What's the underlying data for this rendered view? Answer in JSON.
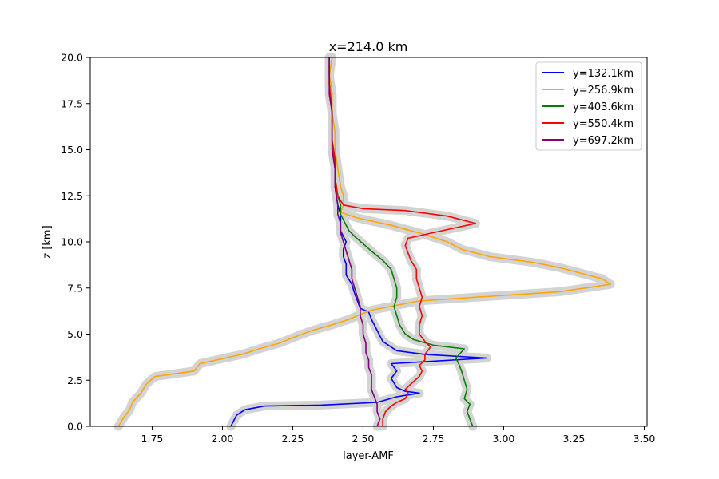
{
  "chart_data": {
    "type": "line",
    "title": "x=214.0 km",
    "xlabel": "layer-AMF",
    "ylabel": "z [km]",
    "xlim": [
      1.53,
      3.51
    ],
    "ylim": [
      0,
      20
    ],
    "xticks": [
      1.75,
      2.0,
      2.25,
      2.5,
      2.75,
      3.0,
      3.25,
      3.5
    ],
    "xtick_labels": [
      "1.75",
      "2.00",
      "2.25",
      "2.50",
      "2.75",
      "3.00",
      "3.25",
      "3.50"
    ],
    "yticks": [
      0,
      2.5,
      5,
      7.5,
      10,
      12.5,
      15,
      17.5,
      20
    ],
    "ytick_labels": [
      "0.0",
      "2.5",
      "5.0",
      "7.5",
      "10.0",
      "12.5",
      "15.0",
      "17.5",
      "20.0"
    ],
    "grid": false,
    "legend_position": "top-right",
    "uncertainty_band_color": "#d3d3d3",
    "series": [
      {
        "name": "y=132.1km",
        "color": "#0000ff",
        "points": [
          [
            2.03,
            0
          ],
          [
            2.04,
            0.3
          ],
          [
            2.05,
            0.6
          ],
          [
            2.08,
            0.9
          ],
          [
            2.15,
            1.1
          ],
          [
            2.35,
            1.15
          ],
          [
            2.55,
            1.3
          ],
          [
            2.62,
            1.6
          ],
          [
            2.7,
            1.8
          ],
          [
            2.65,
            1.9
          ],
          [
            2.62,
            2.1
          ],
          [
            2.6,
            2.6
          ],
          [
            2.62,
            3.0
          ],
          [
            2.6,
            3.4
          ],
          [
            2.94,
            3.7
          ],
          [
            2.72,
            3.9
          ],
          [
            2.62,
            4.1
          ],
          [
            2.57,
            4.6
          ],
          [
            2.55,
            5.2
          ],
          [
            2.53,
            5.8
          ],
          [
            2.52,
            6.2
          ],
          [
            2.49,
            6.4
          ],
          [
            2.48,
            6.8
          ],
          [
            2.47,
            7.2
          ],
          [
            2.46,
            7.7
          ],
          [
            2.44,
            8.2
          ],
          [
            2.44,
            8.8
          ],
          [
            2.43,
            9.2
          ],
          [
            2.43,
            9.6
          ],
          [
            2.44,
            10.0
          ],
          [
            2.43,
            10.3
          ],
          [
            2.42,
            10.6
          ],
          [
            2.42,
            11.0
          ],
          [
            2.42,
            11.5
          ],
          [
            2.41,
            12.0
          ],
          [
            2.4,
            13.0
          ],
          [
            2.4,
            14.0
          ],
          [
            2.39,
            15.0
          ],
          [
            2.39,
            16.0
          ],
          [
            2.39,
            17.0
          ],
          [
            2.39,
            18.0
          ],
          [
            2.38,
            19.0
          ],
          [
            2.38,
            20.0
          ]
        ]
      },
      {
        "name": "y=256.9km",
        "color": "#ffa500",
        "points": [
          [
            1.63,
            0
          ],
          [
            1.65,
            0.5
          ],
          [
            1.67,
            0.9
          ],
          [
            1.68,
            1.3
          ],
          [
            1.71,
            1.8
          ],
          [
            1.73,
            2.3
          ],
          [
            1.76,
            2.7
          ],
          [
            1.83,
            2.85
          ],
          [
            1.9,
            3.0
          ],
          [
            1.92,
            3.4
          ],
          [
            1.98,
            3.6
          ],
          [
            2.07,
            3.9
          ],
          [
            2.13,
            4.2
          ],
          [
            2.2,
            4.5
          ],
          [
            2.25,
            4.8
          ],
          [
            2.32,
            5.2
          ],
          [
            2.39,
            5.5
          ],
          [
            2.45,
            5.8
          ],
          [
            2.48,
            6.0
          ],
          [
            2.53,
            6.3
          ],
          [
            2.7,
            6.8
          ],
          [
            3.0,
            7.1
          ],
          [
            3.2,
            7.3
          ],
          [
            3.38,
            7.7
          ],
          [
            3.35,
            8.0
          ],
          [
            3.3,
            8.2
          ],
          [
            3.2,
            8.6
          ],
          [
            3.1,
            8.9
          ],
          [
            2.95,
            9.2
          ],
          [
            2.85,
            9.6
          ],
          [
            2.8,
            10.0
          ],
          [
            2.72,
            10.4
          ],
          [
            2.6,
            10.9
          ],
          [
            2.48,
            11.3
          ],
          [
            2.42,
            11.6
          ],
          [
            2.43,
            12.0
          ],
          [
            2.43,
            12.5
          ],
          [
            2.42,
            13.0
          ],
          [
            2.41,
            14.0
          ],
          [
            2.4,
            15.0
          ],
          [
            2.4,
            16.0
          ],
          [
            2.39,
            17.0
          ],
          [
            2.39,
            18.0
          ],
          [
            2.38,
            19.0
          ],
          [
            2.39,
            20.0
          ]
        ]
      },
      {
        "name": "y=403.6km",
        "color": "#008000",
        "points": [
          [
            2.89,
            0
          ],
          [
            2.88,
            0.4
          ],
          [
            2.87,
            0.8
          ],
          [
            2.88,
            1.2
          ],
          [
            2.86,
            1.5
          ],
          [
            2.87,
            2.0
          ],
          [
            2.86,
            2.5
          ],
          [
            2.85,
            3.0
          ],
          [
            2.84,
            3.4
          ],
          [
            2.83,
            3.7
          ],
          [
            2.86,
            4.2
          ],
          [
            2.75,
            4.4
          ],
          [
            2.68,
            4.7
          ],
          [
            2.65,
            5.0
          ],
          [
            2.63,
            5.5
          ],
          [
            2.62,
            6.0
          ],
          [
            2.61,
            6.5
          ],
          [
            2.62,
            7.0
          ],
          [
            2.62,
            7.5
          ],
          [
            2.61,
            8.0
          ],
          [
            2.6,
            8.5
          ],
          [
            2.57,
            9.0
          ],
          [
            2.53,
            9.5
          ],
          [
            2.5,
            9.9
          ],
          [
            2.47,
            10.3
          ],
          [
            2.45,
            10.6
          ],
          [
            2.44,
            10.9
          ],
          [
            2.43,
            11.2
          ],
          [
            2.42,
            11.5
          ],
          [
            2.42,
            12.0
          ],
          [
            2.41,
            12.5
          ],
          [
            2.4,
            13.5
          ],
          [
            2.4,
            14.5
          ],
          [
            2.39,
            15.5
          ],
          [
            2.39,
            17.0
          ],
          [
            2.38,
            18.5
          ],
          [
            2.38,
            20.0
          ]
        ]
      },
      {
        "name": "y=550.4km",
        "color": "#ff0000",
        "points": [
          [
            2.57,
            0
          ],
          [
            2.57,
            0.4
          ],
          [
            2.58,
            0.8
          ],
          [
            2.6,
            1.1
          ],
          [
            2.62,
            1.3
          ],
          [
            2.65,
            1.5
          ],
          [
            2.66,
            1.8
          ],
          [
            2.65,
            2.0
          ],
          [
            2.67,
            2.3
          ],
          [
            2.7,
            2.7
          ],
          [
            2.71,
            3.0
          ],
          [
            2.7,
            3.3
          ],
          [
            2.72,
            3.6
          ],
          [
            2.72,
            3.9
          ],
          [
            2.74,
            4.3
          ],
          [
            2.72,
            4.6
          ],
          [
            2.7,
            5.0
          ],
          [
            2.7,
            5.5
          ],
          [
            2.71,
            6.0
          ],
          [
            2.7,
            6.5
          ],
          [
            2.71,
            7.0
          ],
          [
            2.7,
            7.5
          ],
          [
            2.69,
            8.0
          ],
          [
            2.69,
            8.5
          ],
          [
            2.67,
            9.0
          ],
          [
            2.66,
            9.4
          ],
          [
            2.65,
            9.8
          ],
          [
            2.66,
            10.2
          ],
          [
            2.75,
            10.5
          ],
          [
            2.9,
            11.0
          ],
          [
            2.8,
            11.4
          ],
          [
            2.65,
            11.7
          ],
          [
            2.5,
            11.8
          ],
          [
            2.43,
            12.0
          ],
          [
            2.41,
            12.5
          ],
          [
            2.4,
            13.5
          ],
          [
            2.4,
            14.5
          ],
          [
            2.39,
            15.5
          ],
          [
            2.39,
            17.0
          ],
          [
            2.38,
            18.5
          ],
          [
            2.38,
            20.0
          ]
        ]
      },
      {
        "name": "y=697.2km",
        "color": "#800080",
        "points": [
          [
            2.55,
            0
          ],
          [
            2.56,
            0.4
          ],
          [
            2.55,
            0.8
          ],
          [
            2.55,
            1.2
          ],
          [
            2.54,
            1.6
          ],
          [
            2.53,
            2.0
          ],
          [
            2.53,
            2.4
          ],
          [
            2.53,
            2.8
          ],
          [
            2.52,
            3.2
          ],
          [
            2.52,
            3.6
          ],
          [
            2.51,
            4.0
          ],
          [
            2.51,
            4.5
          ],
          [
            2.5,
            5.0
          ],
          [
            2.5,
            5.5
          ],
          [
            2.49,
            6.0
          ],
          [
            2.49,
            6.5
          ],
          [
            2.48,
            7.0
          ],
          [
            2.47,
            7.5
          ],
          [
            2.46,
            8.0
          ],
          [
            2.46,
            8.5
          ],
          [
            2.45,
            9.0
          ],
          [
            2.44,
            9.5
          ],
          [
            2.43,
            10.0
          ],
          [
            2.42,
            10.5
          ],
          [
            2.42,
            11.0
          ],
          [
            2.41,
            11.5
          ],
          [
            2.41,
            12.0
          ],
          [
            2.4,
            13.0
          ],
          [
            2.4,
            14.0
          ],
          [
            2.39,
            15.0
          ],
          [
            2.39,
            16.0
          ],
          [
            2.39,
            17.0
          ],
          [
            2.38,
            18.0
          ],
          [
            2.38,
            19.0
          ],
          [
            2.38,
            20.0
          ]
        ]
      }
    ]
  }
}
